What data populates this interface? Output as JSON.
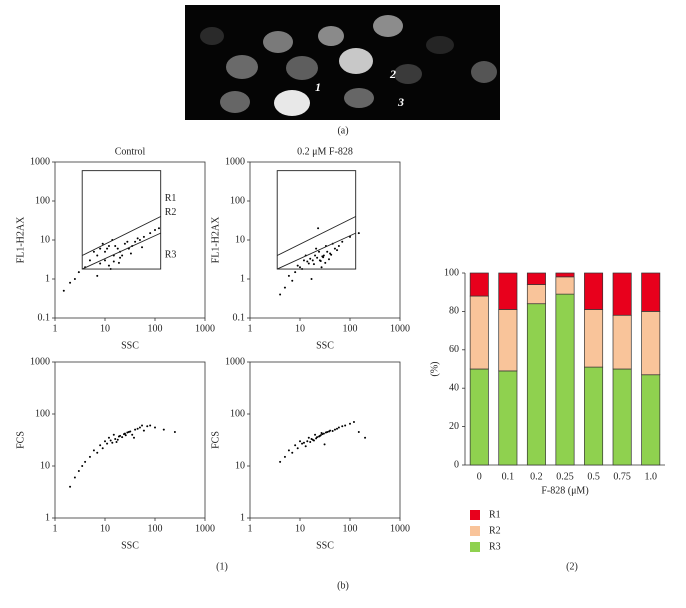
{
  "figure_a": {
    "label": "(a)",
    "cell_labels": [
      "1",
      "2",
      "3"
    ]
  },
  "panel_labels": {
    "b1": "(1)",
    "b2": "(2)",
    "b": "(b)"
  },
  "chart_data": [
    {
      "type": "scatter",
      "title": "Control",
      "xlabel": "SSC",
      "ylabel": "FL1-H2AX",
      "log_scale": true,
      "color": "#000000",
      "xlim": [
        1,
        1000
      ],
      "ylim": [
        0.1,
        1000
      ],
      "xticks": [
        1,
        10,
        100,
        1000
      ],
      "yticks": [
        0.1,
        1,
        10,
        100,
        1000
      ],
      "x": [
        5,
        7,
        8,
        10,
        12,
        15,
        18,
        20,
        25,
        30,
        35,
        40,
        50,
        60,
        8,
        10,
        12,
        15,
        20,
        6,
        9,
        14,
        22,
        3,
        2,
        4,
        1.5,
        80,
        100,
        120,
        11,
        16,
        28,
        45,
        7,
        13,
        19,
        33,
        55,
        2.5
      ],
      "values": [
        3,
        4,
        6,
        5,
        7,
        4,
        6,
        5,
        8,
        6,
        7,
        9,
        10,
        12,
        2.5,
        3,
        2.2,
        2.8,
        3.5,
        5,
        8,
        10,
        4,
        1.5,
        0.8,
        2,
        0.5,
        15,
        18,
        20,
        6,
        7,
        9,
        11,
        1.2,
        1.8,
        2.6,
        4.5,
        6.5,
        1
      ],
      "gate": {
        "x": [
          3.5,
          130
        ],
        "y": [
          1.8,
          600
        ]
      },
      "gate_lines": [
        {
          "x": [
            3.5,
            130
          ],
          "y": [
            4,
            40
          ]
        },
        {
          "x": [
            3.5,
            130
          ],
          "y": [
            1.8,
            15
          ]
        }
      ],
      "gate_labels": [
        "R1",
        "R2",
        "R3"
      ]
    },
    {
      "type": "scatter",
      "title": "0.2 μM F-828",
      "xlabel": "SSC",
      "ylabel": "FL1-H2AX",
      "log_scale": true,
      "color": "#000000",
      "xlim": [
        1,
        1000
      ],
      "ylim": [
        0.1,
        1000
      ],
      "xticks": [
        1,
        10,
        100,
        1000
      ],
      "yticks": [
        0.1,
        1,
        10,
        100,
        1000
      ],
      "x": [
        10,
        12,
        15,
        18,
        20,
        22,
        25,
        30,
        35,
        40,
        50,
        60,
        8,
        9,
        11,
        14,
        16,
        19,
        24,
        28,
        32,
        45,
        70,
        100,
        6,
        5,
        13,
        17,
        21,
        27,
        38,
        55,
        7,
        150,
        4,
        23,
        26,
        29,
        33,
        42
      ],
      "values": [
        2,
        3,
        2.5,
        3,
        4,
        3.5,
        3,
        4,
        5,
        4.5,
        6,
        7,
        1.5,
        2.2,
        1.8,
        2.8,
        3.3,
        2.4,
        5,
        3.8,
        2.6,
        8,
        9,
        12,
        1.2,
        0.6,
        4,
        1,
        6,
        2,
        3.2,
        5.5,
        0.9,
        15,
        0.4,
        20,
        2.9,
        3.6,
        7,
        4.2
      ],
      "gate": {
        "x": [
          3.5,
          130
        ],
        "y": [
          1.8,
          600
        ]
      },
      "gate_lines": [
        {
          "x": [
            3.5,
            130
          ],
          "y": [
            4,
            40
          ]
        },
        {
          "x": [
            3.5,
            130
          ],
          "y": [
            1.8,
            15
          ]
        }
      ]
    },
    {
      "type": "scatter",
      "xlabel": "SSC",
      "ylabel": "FCS",
      "log_scale": true,
      "color": "#000000",
      "xlim": [
        1,
        1000
      ],
      "ylim": [
        1,
        1000
      ],
      "xticks": [
        1,
        10,
        100,
        1000
      ],
      "yticks": [
        1,
        10,
        100,
        1000
      ],
      "x": [
        10,
        12,
        15,
        18,
        20,
        25,
        30,
        35,
        40,
        50,
        60,
        80,
        100,
        8,
        6,
        5,
        4,
        3,
        2,
        14,
        22,
        28,
        45,
        70,
        150,
        250,
        9,
        11,
        16,
        19,
        24,
        32,
        38,
        55,
        3.5,
        2.5,
        7,
        13,
        17,
        26
      ],
      "values": [
        30,
        35,
        40,
        32,
        38,
        42,
        45,
        40,
        50,
        55,
        48,
        60,
        55,
        25,
        20,
        15,
        12,
        8,
        4,
        28,
        36,
        44,
        52,
        58,
        50,
        45,
        22,
        27,
        33,
        37,
        41,
        46,
        35,
        60,
        10,
        6,
        18,
        31,
        29,
        39
      ]
    },
    {
      "type": "scatter",
      "xlabel": "SSC",
      "ylabel": "FCS",
      "log_scale": true,
      "color": "#000000",
      "xlim": [
        1,
        1000
      ],
      "ylim": [
        1,
        1000
      ],
      "xticks": [
        1,
        10,
        100,
        1000
      ],
      "yticks": [
        1,
        10,
        100,
        1000
      ],
      "x": [
        8,
        10,
        12,
        15,
        18,
        20,
        25,
        30,
        35,
        40,
        50,
        60,
        80,
        100,
        150,
        5,
        6,
        9,
        11,
        14,
        17,
        22,
        28,
        33,
        45,
        55,
        70,
        4,
        7,
        13,
        16,
        19,
        24,
        26,
        38,
        120,
        200,
        21,
        27,
        31
      ],
      "values": [
        25,
        30,
        28,
        35,
        32,
        40,
        38,
        42,
        45,
        48,
        50,
        55,
        60,
        65,
        45,
        15,
        20,
        22,
        27,
        30,
        33,
        36,
        41,
        44,
        47,
        52,
        58,
        12,
        18,
        24,
        29,
        31,
        37,
        39,
        46,
        70,
        35,
        34,
        43,
        26
      ]
    },
    {
      "type": "stacked_bar",
      "xlabel": "F-828 (μM)",
      "ylabel": "(%)",
      "categories": [
        "0",
        "0.1",
        "0.2",
        "0.25",
        "0.5",
        "0.75",
        "1.0"
      ],
      "ylim": [
        0,
        100
      ],
      "yticks": [
        0,
        20,
        40,
        60,
        80,
        100
      ],
      "series": [
        {
          "name": "R3",
          "color": "#8fd14f",
          "values": [
            50,
            49,
            84,
            89,
            51,
            50,
            47
          ]
        },
        {
          "name": "R2",
          "color": "#f9c49a",
          "values": [
            38,
            32,
            10,
            9,
            30,
            28,
            33
          ]
        },
        {
          "name": "R1",
          "color": "#e8001c",
          "values": [
            12,
            19,
            6,
            2,
            19,
            22,
            20
          ]
        }
      ]
    }
  ]
}
